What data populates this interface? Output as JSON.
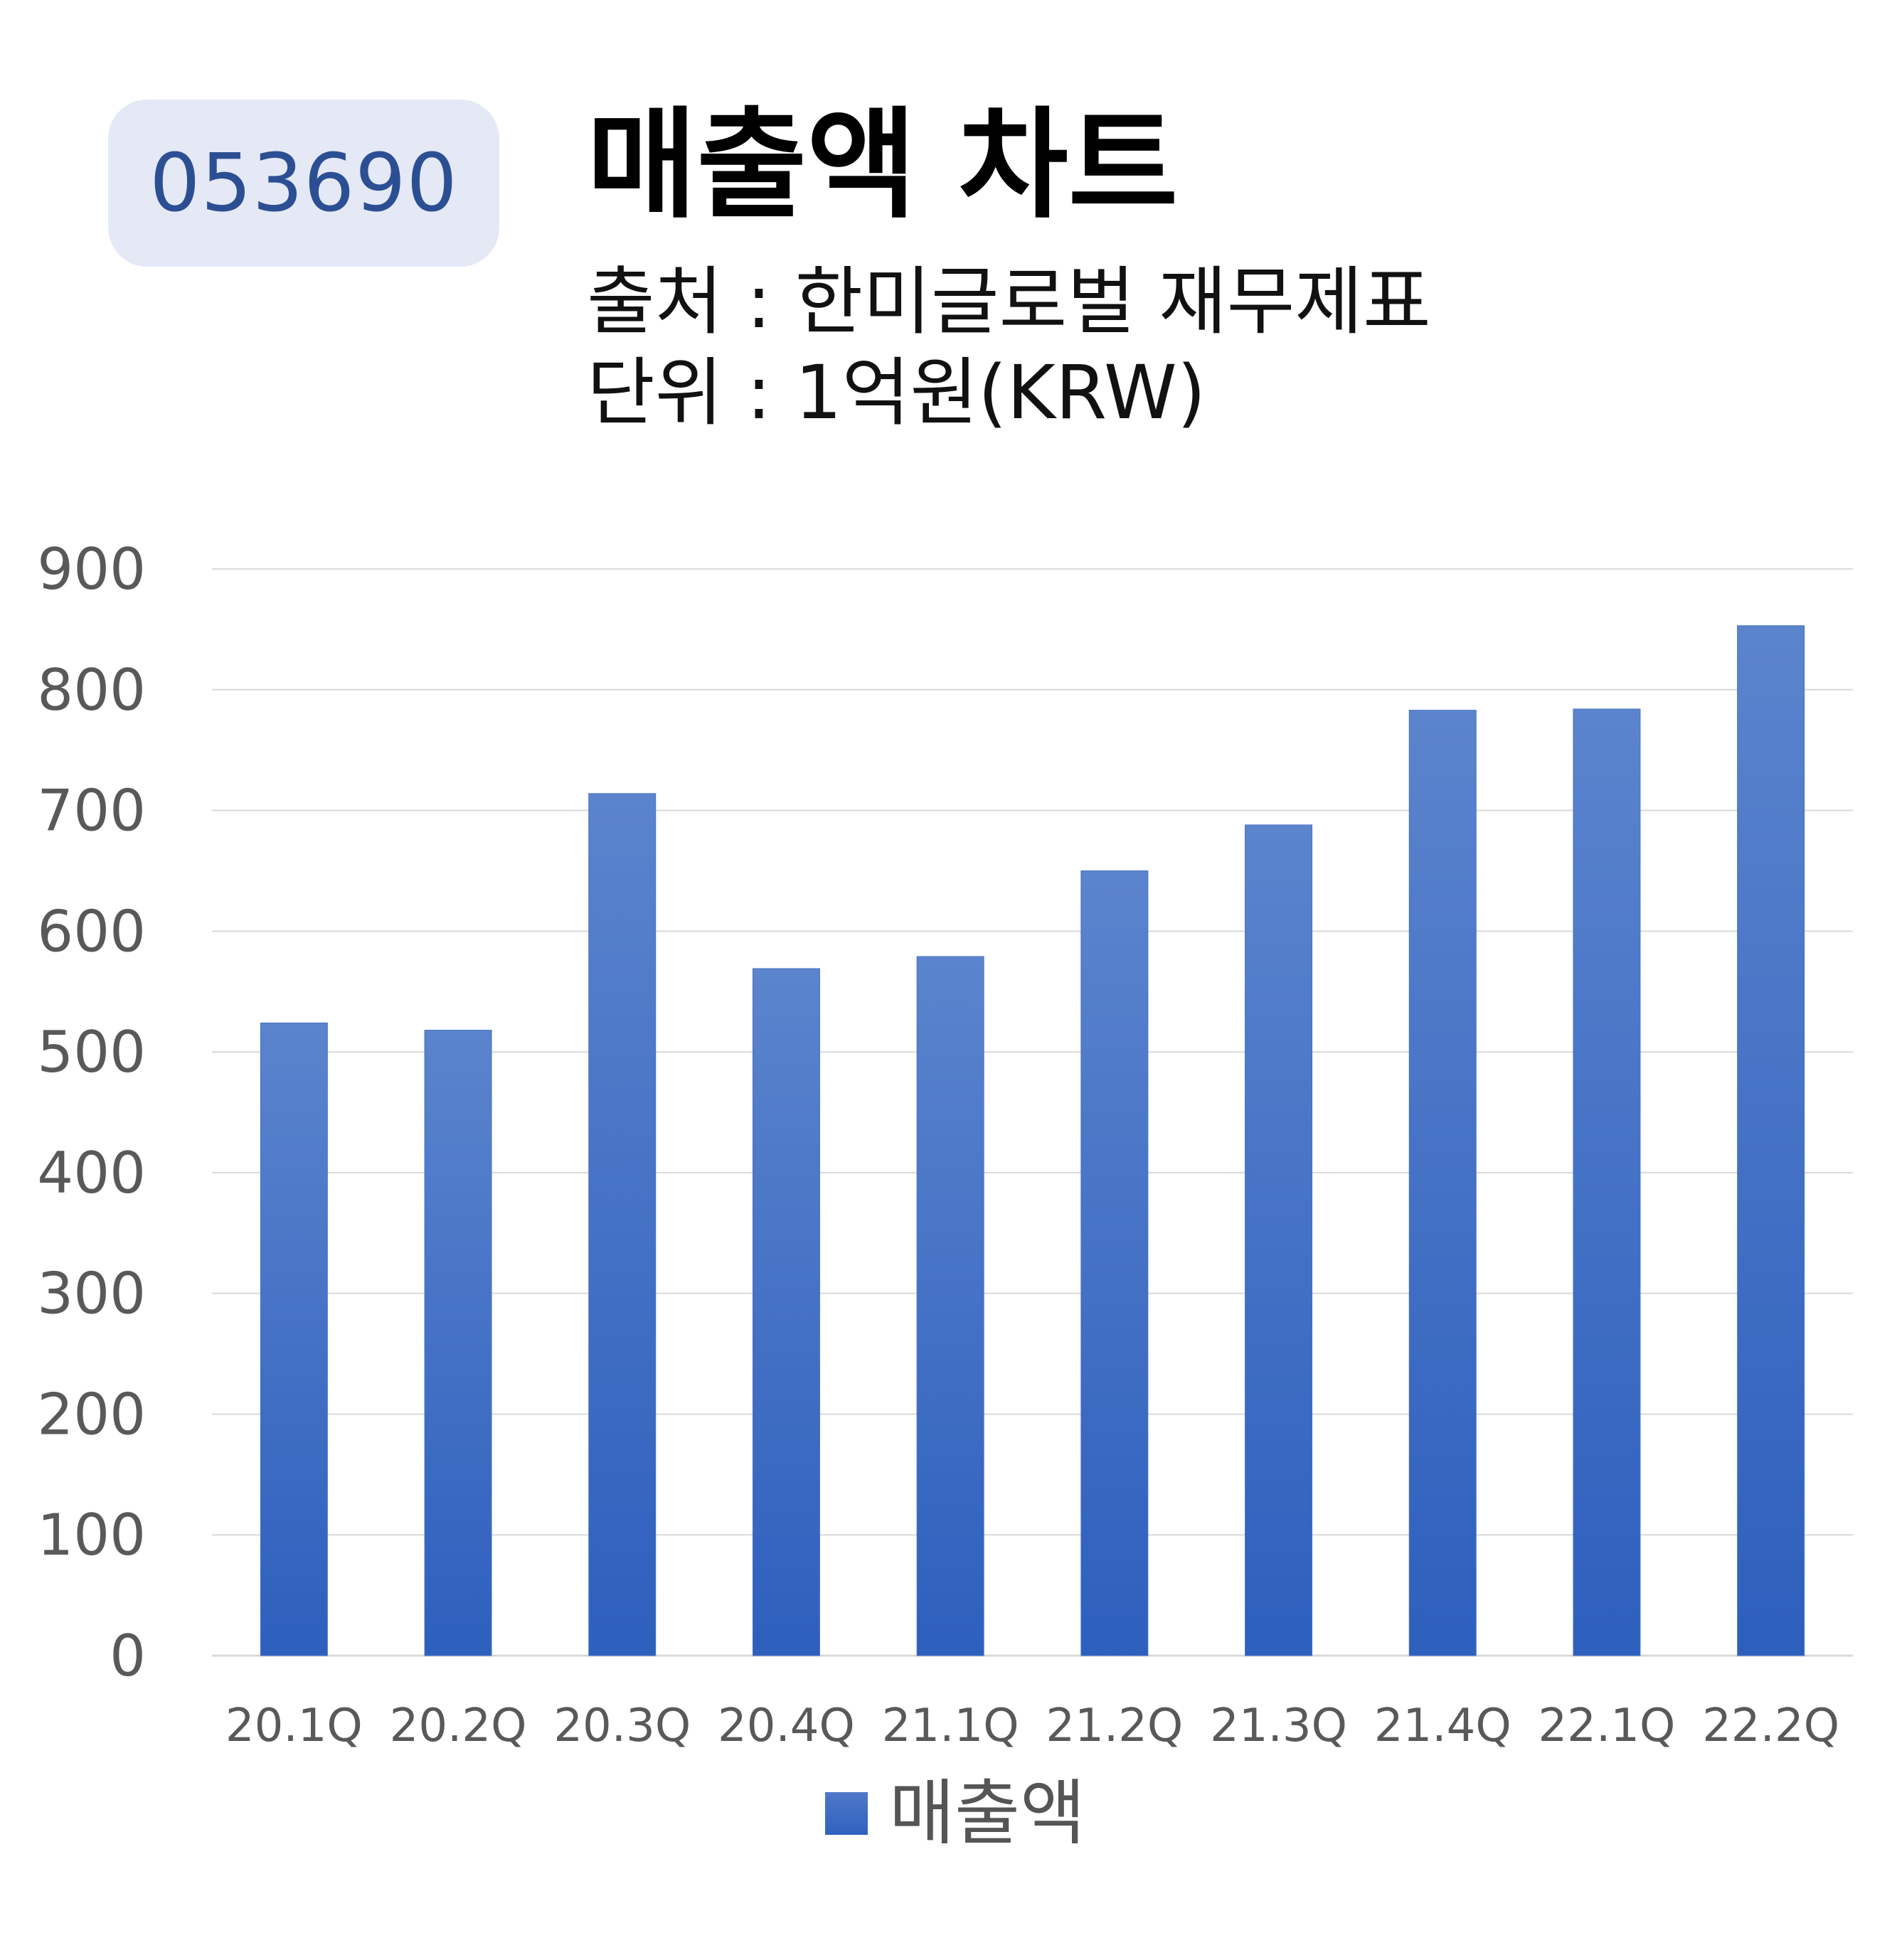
{
  "badge": {
    "ticker": "053690"
  },
  "header": {
    "title": "매출액 차트",
    "source_line": "출처 : 한미글로벌 재무제표",
    "unit_line": "단위 : 1억원(KRW)"
  },
  "colors": {
    "bar_top": "#5b84cd",
    "bar_bottom": "#2d5fbd",
    "grid": "#d9d9d9",
    "axis_text": "#595959",
    "badge_bg": "#e4e9f5",
    "badge_text": "#2c4f94"
  },
  "chart_data": {
    "type": "bar",
    "categories": [
      "20.1Q",
      "20.2Q",
      "20.3Q",
      "20.4Q",
      "21.1Q",
      "21.2Q",
      "21.3Q",
      "21.4Q",
      "22.1Q",
      "22.2Q"
    ],
    "series": [
      {
        "name": "매출액",
        "values": [
          524,
          518,
          714,
          569,
          579,
          650,
          688,
          783,
          784,
          853
        ]
      }
    ],
    "yticks": [
      0,
      100,
      200,
      300,
      400,
      500,
      600,
      700,
      800,
      900
    ],
    "ylim": [
      0,
      900
    ],
    "grid": true,
    "legend": "bottom"
  },
  "legend": {
    "label": "매출액"
  }
}
